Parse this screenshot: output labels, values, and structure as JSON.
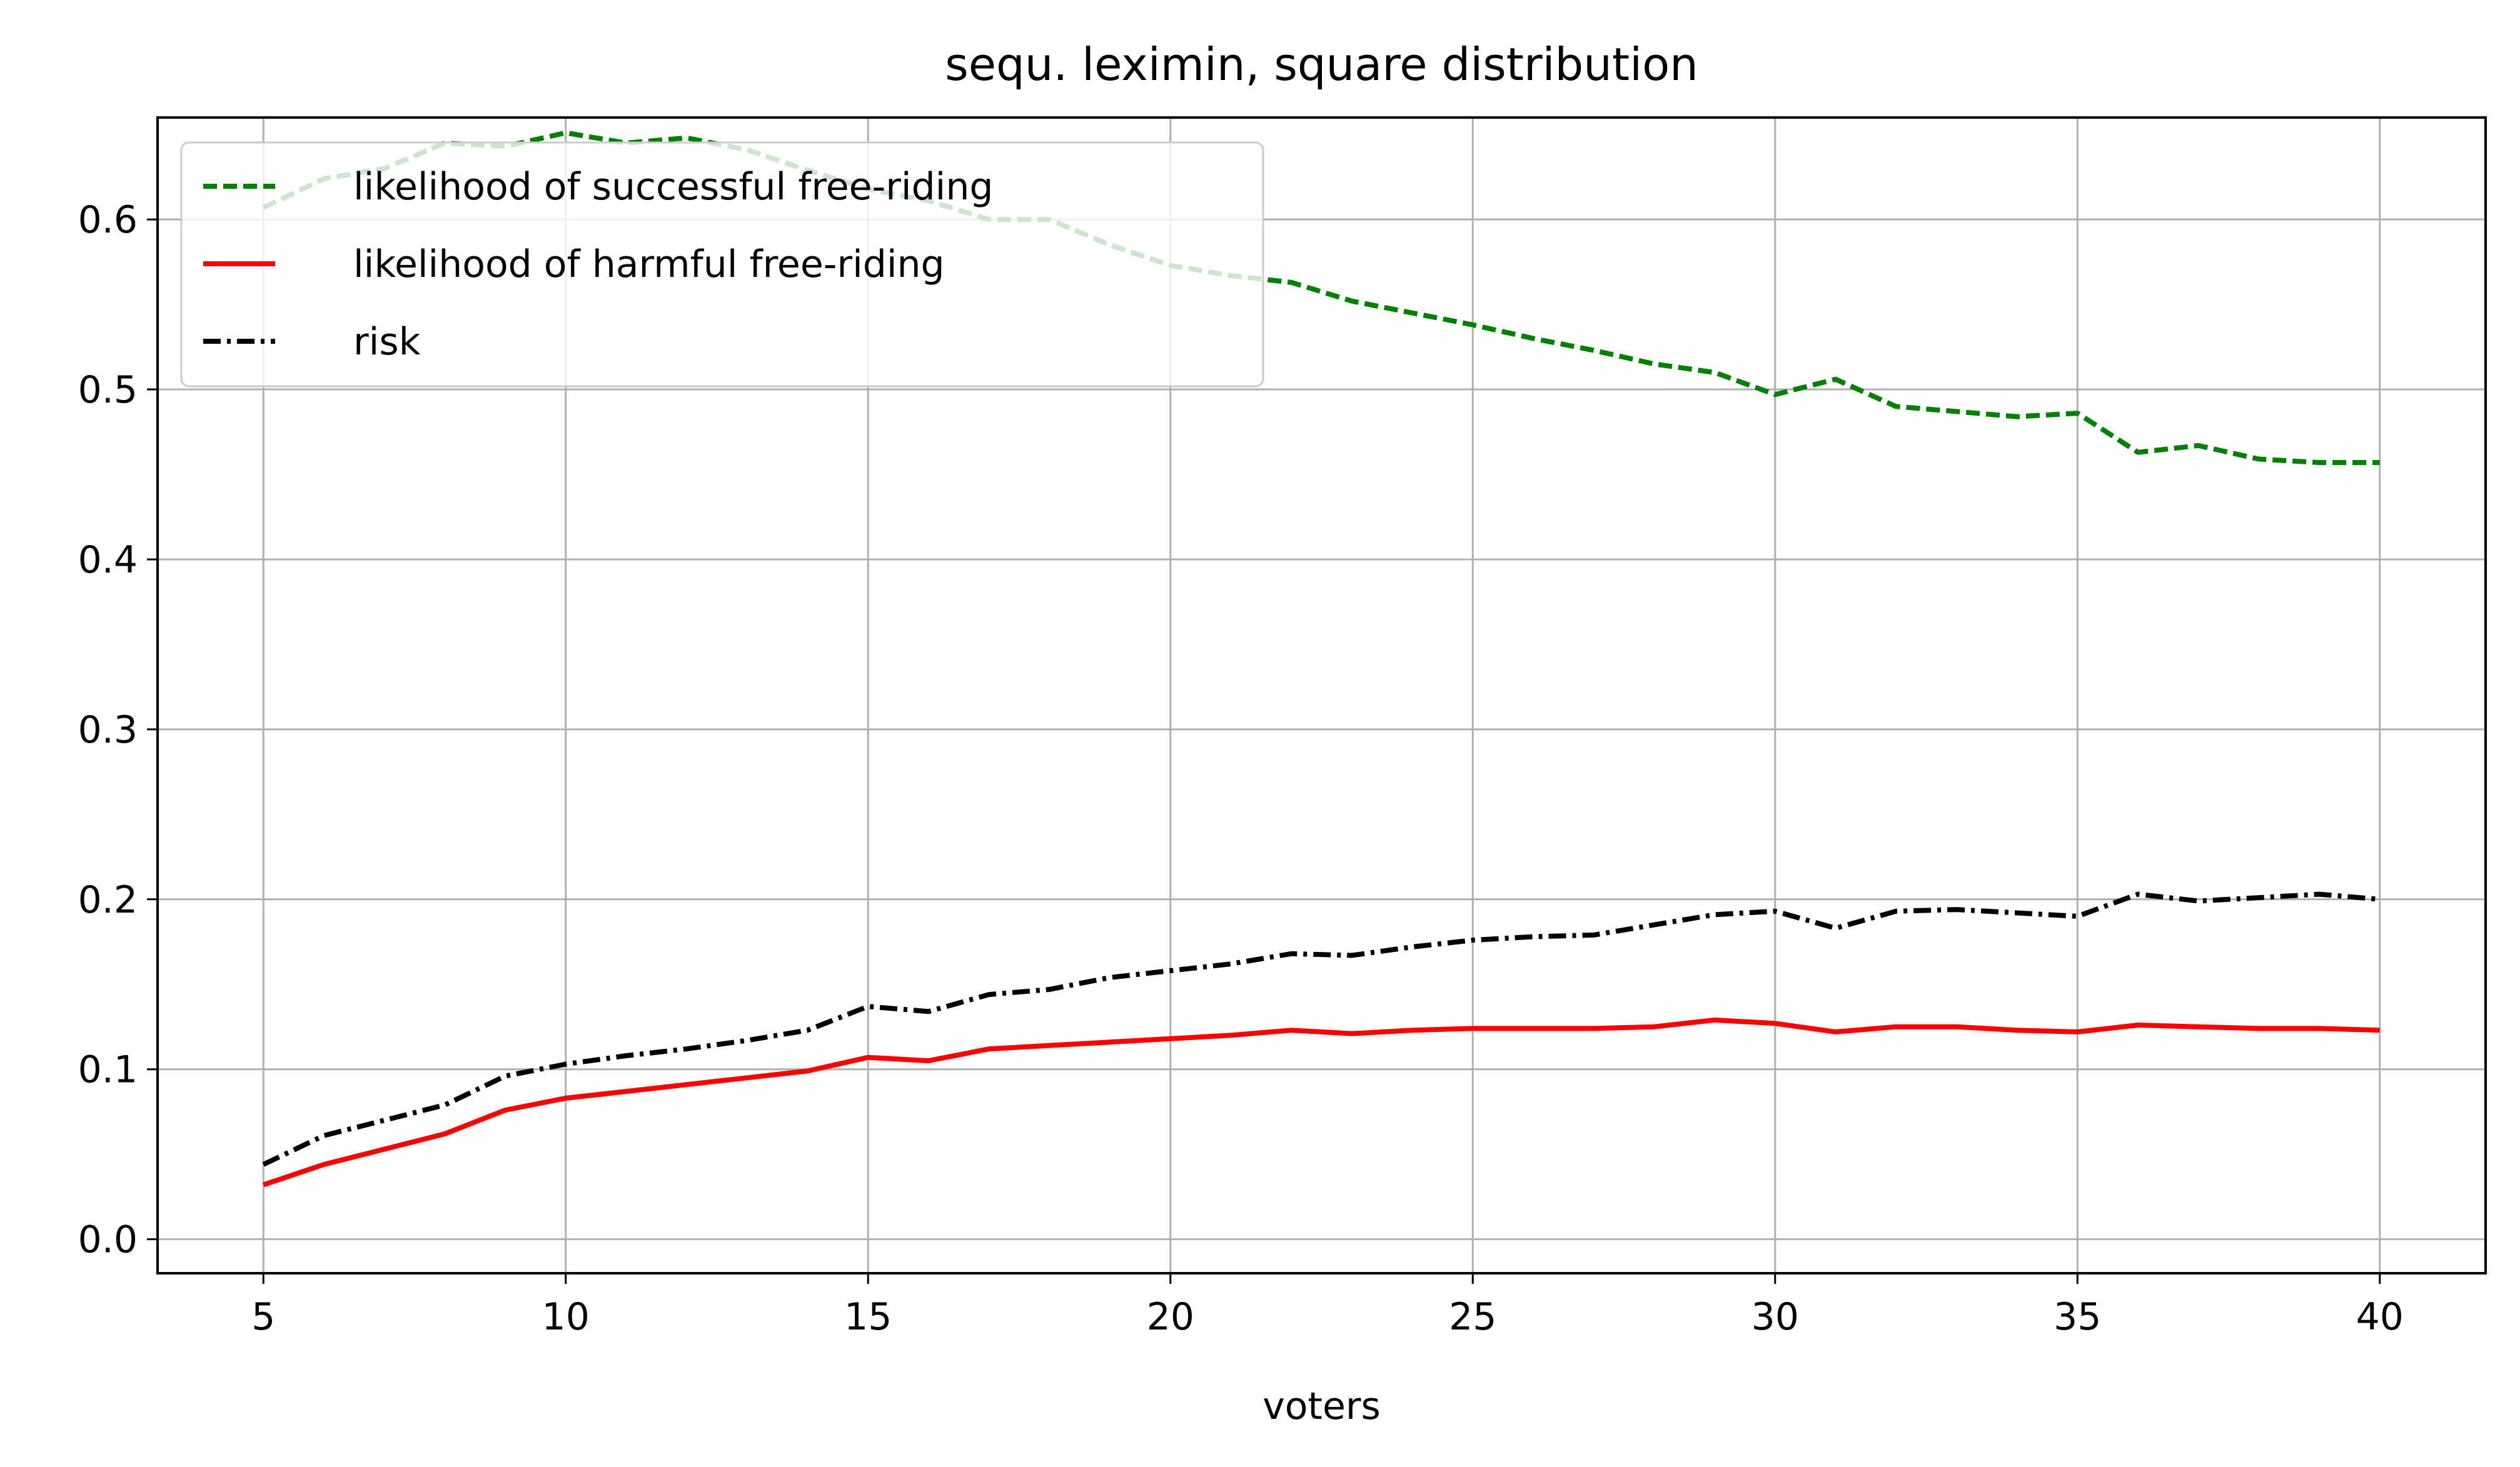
{
  "chart_data": {
    "type": "line",
    "title": "sequ. leximin, square distribution",
    "xlabel": "voters",
    "ylabel": "",
    "xlim": [
      3.25,
      41.75
    ],
    "ylim": [
      -0.02,
      0.66
    ],
    "xticks": [
      5,
      10,
      15,
      20,
      25,
      30,
      35,
      40
    ],
    "yticks": [
      0.0,
      0.1,
      0.2,
      0.3,
      0.4,
      0.5,
      0.6
    ],
    "grid": true,
    "legend_position": "top-left",
    "x": [
      5,
      6,
      7,
      8,
      9,
      10,
      11,
      12,
      13,
      14,
      15,
      16,
      17,
      18,
      19,
      20,
      21,
      22,
      23,
      24,
      25,
      26,
      27,
      28,
      29,
      30,
      31,
      32,
      33,
      34,
      35,
      36,
      37,
      38,
      39,
      40
    ],
    "series": [
      {
        "name": "likelihood of successful free-riding",
        "color": "#008000",
        "dash": "dashed",
        "values": [
          0.607,
          0.624,
          0.63,
          0.645,
          0.643,
          0.651,
          0.645,
          0.648,
          0.641,
          0.629,
          0.618,
          0.611,
          0.6,
          0.6,
          0.585,
          0.573,
          0.567,
          0.563,
          0.552,
          0.545,
          0.538,
          0.53,
          0.523,
          0.515,
          0.51,
          0.497,
          0.506,
          0.49,
          0.487,
          0.484,
          0.486,
          0.463,
          0.467,
          0.459,
          0.457,
          0.457
        ]
      },
      {
        "name": "likelihood of harmful free-riding",
        "color": "#ff0000",
        "dash": "solid",
        "values": [
          0.032,
          0.044,
          0.053,
          0.062,
          0.076,
          0.083,
          0.087,
          0.091,
          0.095,
          0.099,
          0.107,
          0.105,
          0.112,
          0.114,
          0.116,
          0.118,
          0.12,
          0.123,
          0.121,
          0.123,
          0.124,
          0.124,
          0.124,
          0.125,
          0.129,
          0.127,
          0.122,
          0.125,
          0.125,
          0.123,
          0.122,
          0.126,
          0.125,
          0.124,
          0.124,
          0.123
        ]
      },
      {
        "name": "risk",
        "color": "#000000",
        "dash": "dashdot",
        "values": [
          0.044,
          0.061,
          0.07,
          0.079,
          0.096,
          0.103,
          0.108,
          0.112,
          0.117,
          0.123,
          0.137,
          0.134,
          0.144,
          0.147,
          0.154,
          0.158,
          0.162,
          0.168,
          0.167,
          0.172,
          0.176,
          0.178,
          0.179,
          0.185,
          0.191,
          0.193,
          0.183,
          0.193,
          0.194,
          0.192,
          0.19,
          0.203,
          0.199,
          0.201,
          0.203,
          0.2
        ]
      }
    ]
  }
}
